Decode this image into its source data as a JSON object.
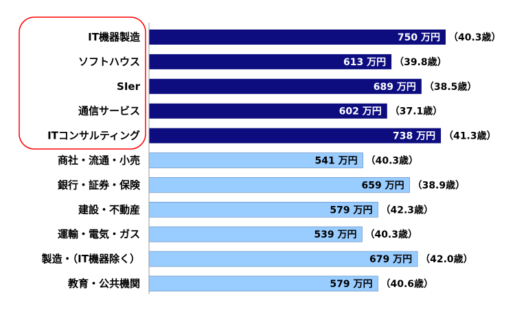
{
  "chart_data": {
    "type": "bar",
    "orientation": "horizontal",
    "value_unit": "万円",
    "categories": [
      "IT機器製造",
      "ソフトハウス",
      "SIer",
      "通信サービス",
      "ITコンサルティング",
      "商社・流通・小売",
      "銀行・証券・保険",
      "建設・不動産",
      "運輸・電気・ガス",
      "製造・（IT機器除く）",
      "教育・公共機関"
    ],
    "values": [
      750,
      613,
      689,
      602,
      738,
      541,
      659,
      579,
      539,
      679,
      579
    ],
    "ages": [
      "（40.3歳）",
      "（39.8歳）",
      "（38.5歳）",
      "（37.1歳）",
      "（41.3歳）",
      "（40.3歳）",
      "（38.9歳）",
      "（42.3歳）",
      "（40.3歳）",
      "（42.0歳）",
      "（40.6歳）"
    ],
    "highlighted_count": 5,
    "colors": {
      "highlighted_bar": "#0d0d80",
      "normal_bar": "#99ccff",
      "highlighted_value_text": "#ffffff",
      "normal_value_text": "#000000",
      "highlight_box": "#ff0000",
      "axis": "#999999"
    },
    "grid": false,
    "legend": "none"
  }
}
